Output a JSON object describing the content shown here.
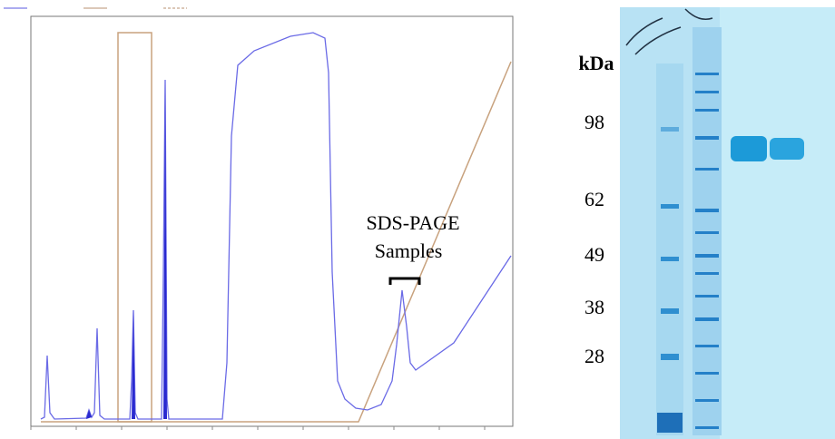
{
  "annotation": {
    "line1": "SDS-PAGE",
    "line2": "Samples"
  },
  "gel": {
    "unit": "kDa",
    "markers": [
      "98",
      "62",
      "49",
      "38",
      "28"
    ]
  }
}
